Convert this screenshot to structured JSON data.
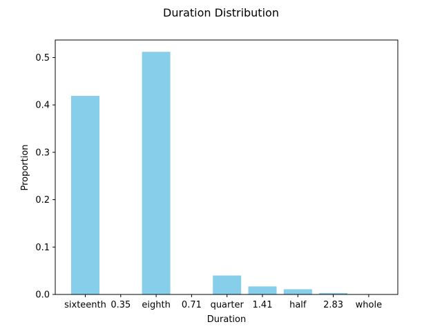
{
  "chart_data": {
    "type": "bar",
    "title": "Duration Distribution",
    "xlabel": "Duration",
    "ylabel": "Proportion",
    "categories": [
      "sixteenth",
      "0.35",
      "eighth",
      "0.71",
      "quarter",
      "1.41",
      "half",
      "2.83",
      "whole"
    ],
    "values": [
      0.419,
      0.0,
      0.512,
      0.0,
      0.04,
      0.017,
      0.011,
      0.003,
      0.0
    ],
    "ylim": [
      0,
      0.537
    ],
    "yticks": [
      "0.0",
      "0.1",
      "0.2",
      "0.3",
      "0.4",
      "0.5"
    ],
    "bar_color": "#87ceeb",
    "grid": false,
    "legend": "none"
  }
}
